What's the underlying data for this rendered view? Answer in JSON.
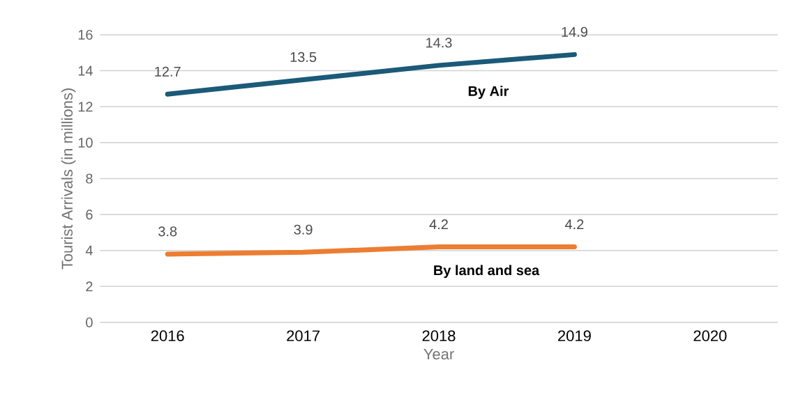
{
  "chart_data": {
    "type": "line",
    "xlabel": "Year",
    "ylabel": "Tourist Arrivals (in millions)",
    "categories": [
      "2016",
      "2017",
      "2018",
      "2019",
      "2020"
    ],
    "series": [
      {
        "name": "By Air",
        "color": "#1b5a78",
        "values": [
          12.7,
          13.5,
          14.3,
          14.9,
          null
        ]
      },
      {
        "name": "By land and sea",
        "color": "#ed7d31",
        "values": [
          3.8,
          3.9,
          4.2,
          4.2,
          null
        ]
      }
    ],
    "ylim": [
      0,
      16
    ],
    "yticks": [
      0,
      2,
      4,
      6,
      8,
      10,
      12,
      14,
      16
    ],
    "grid": "y",
    "legend": false,
    "marker": "none",
    "data_labels": true
  }
}
